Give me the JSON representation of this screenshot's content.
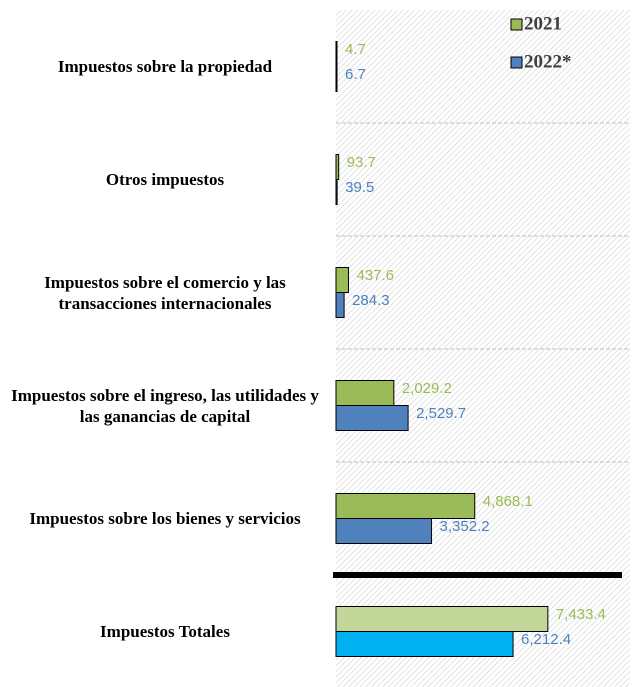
{
  "chart_data": {
    "type": "hbar",
    "categories": [
      "Impuestos sobre la propiedad",
      "Otros impuestos",
      "Impuestos sobre el comercio y las transacciones internacionales",
      "Impuestos sobre el ingreso, las utilidades y las ganancias de capital",
      "Impuestos sobre los bienes y servicios",
      "Impuestos Totales"
    ],
    "series": [
      {
        "name": "2021",
        "color": "#9bbb59",
        "colors": [
          "#9bbb59",
          "#9bbb59",
          "#9bbb59",
          "#9bbb59",
          "#9bbb59",
          "#c4d79b"
        ],
        "values": [
          4.7,
          93.7,
          437.6,
          2029.2,
          4868.1,
          7433.4
        ],
        "value_labels": [
          "4.7",
          "93.7",
          "437.6",
          "2,029.2",
          "4,868.1",
          "7,433.4"
        ]
      },
      {
        "name": "2022*",
        "color": "#4f81bd",
        "colors": [
          "#4f81bd",
          "#4f81bd",
          "#4f81bd",
          "#4f81bd",
          "#4f81bd",
          "#00b0f0"
        ],
        "values": [
          6.7,
          39.5,
          284.3,
          2529.7,
          3352.2,
          6212.4
        ],
        "value_labels": [
          "6.7",
          "39.5",
          "284.3",
          "2,529.7",
          "3,352.2",
          "6,212.4"
        ]
      }
    ],
    "legend": "top-right"
  }
}
